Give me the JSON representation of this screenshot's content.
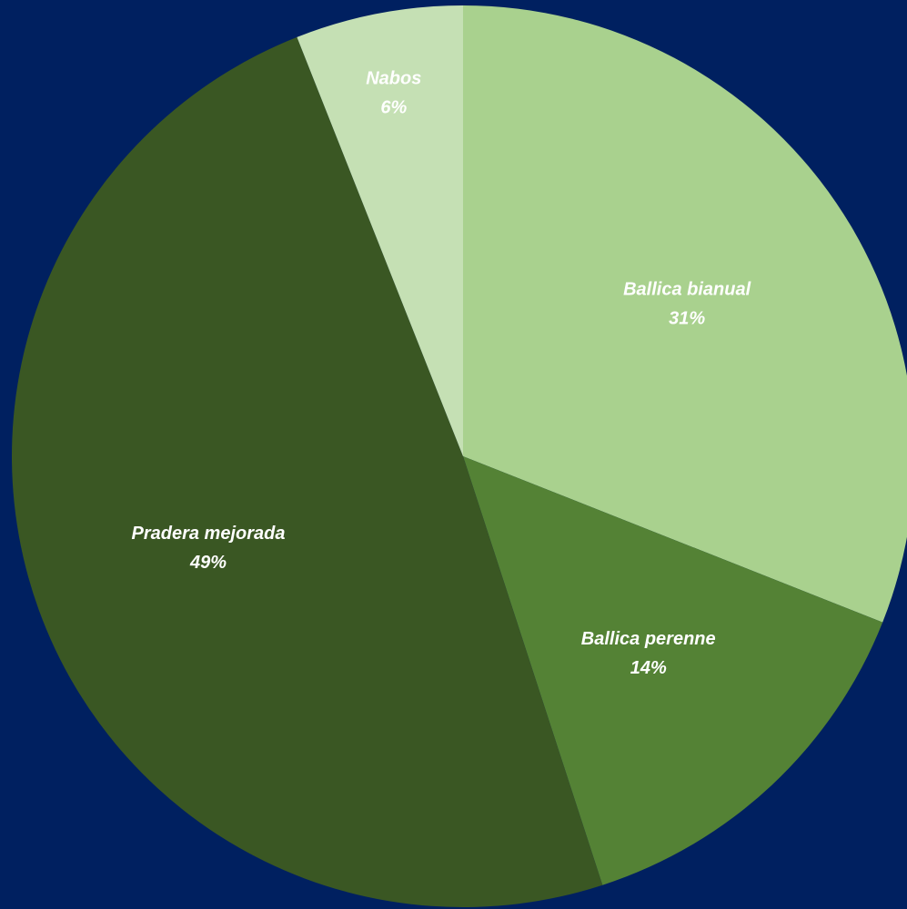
{
  "background_color": "#002060",
  "chart_data": {
    "type": "pie",
    "title": "",
    "categories": [
      "Ballica bianual",
      "Ballica perenne",
      "Pradera mejorada",
      "Nabos"
    ],
    "values": [
      31,
      14,
      49,
      6
    ],
    "value_labels": [
      "31%",
      "14%",
      "49%",
      "6%"
    ],
    "colors": [
      "#A9D18E",
      "#548235",
      "#3A5723",
      "#C5E0B4"
    ],
    "label_color": "#FFFFFF",
    "start": "12 o'clock",
    "direction": "clockwise",
    "legend": "none"
  }
}
